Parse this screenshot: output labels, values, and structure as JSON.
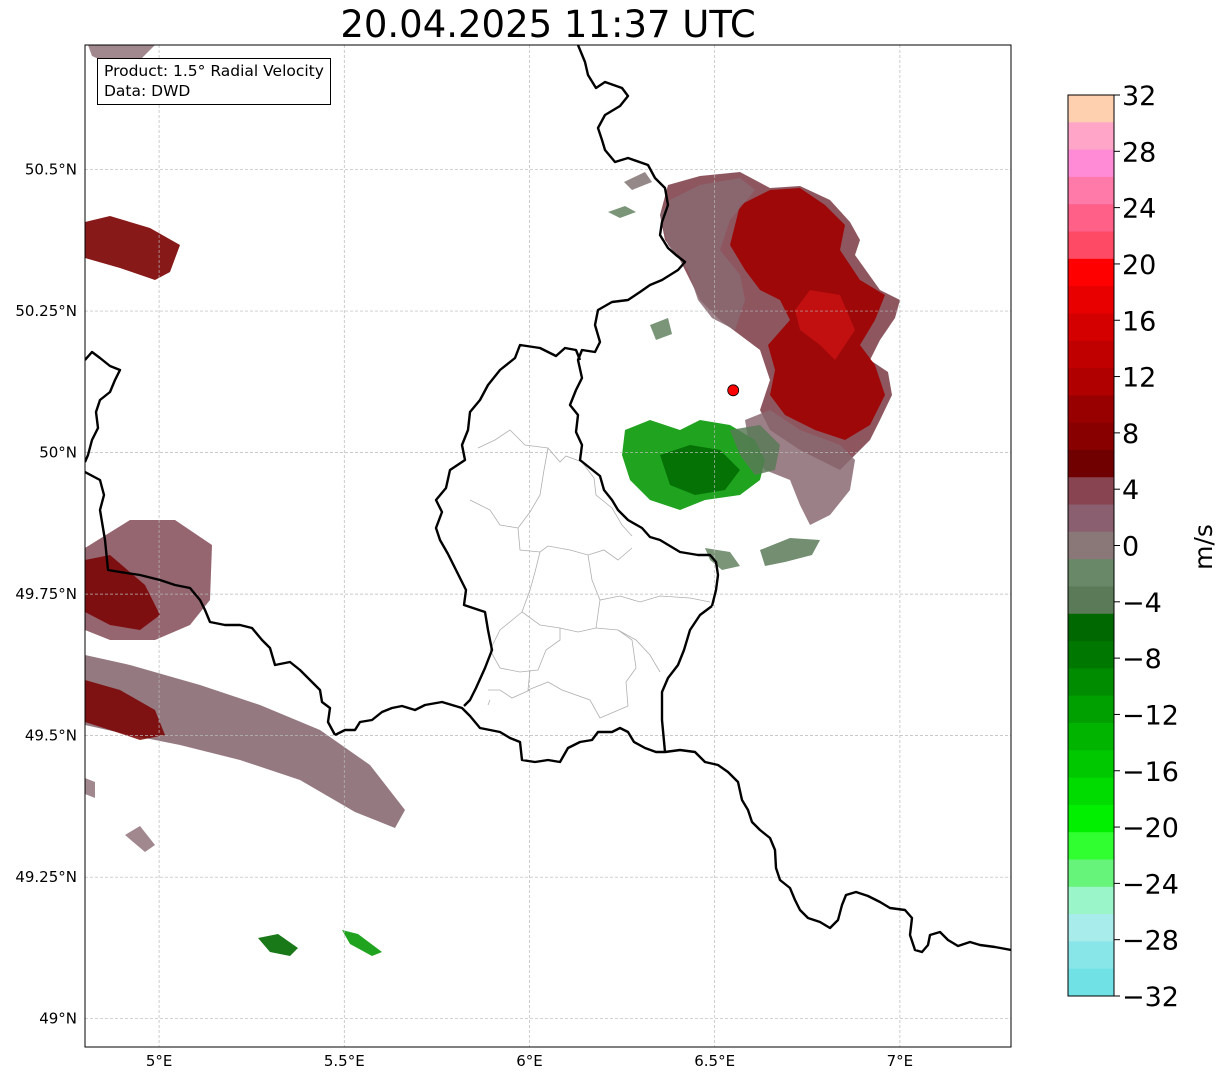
{
  "title": "20.04.2025 11:37 UTC",
  "info": {
    "product": "Product: 1.5° Radial Velocity",
    "data": "Data: DWD"
  },
  "map": {
    "lon_range": [
      4.8,
      7.3
    ],
    "lat_range": [
      48.95,
      50.72
    ],
    "lat_ticks": [
      {
        "value": 49.0,
        "label": "49°N"
      },
      {
        "value": 49.25,
        "label": "49.25°N"
      },
      {
        "value": 49.5,
        "label": "49.5°N"
      },
      {
        "value": 49.75,
        "label": "49.75°N"
      },
      {
        "value": 50.0,
        "label": "50°N"
      },
      {
        "value": 50.25,
        "label": "50.25°N"
      },
      {
        "value": 50.5,
        "label": "50.5°N"
      }
    ],
    "lon_ticks": [
      {
        "value": 5.0,
        "label": "5°E"
      },
      {
        "value": 5.5,
        "label": "5.5°E"
      },
      {
        "value": 6.0,
        "label": "6°E"
      },
      {
        "value": 6.5,
        "label": "6.5°E"
      },
      {
        "value": 7.0,
        "label": "7°E"
      }
    ],
    "radar_site": {
      "lon": 6.55,
      "lat": 50.11
    }
  },
  "colorbar": {
    "label": "m/s",
    "min": -32,
    "max": 32,
    "ticks": [
      "32",
      "28",
      "24",
      "20",
      "16",
      "12",
      "8",
      "4",
      "0",
      "−4",
      "−8",
      "−12",
      "−16",
      "−20",
      "−24",
      "−28",
      "−32"
    ],
    "colors_top_to_bottom": [
      "#ffd0b0",
      "#ffa6c8",
      "#ff8ad6",
      "#ff7aa8",
      "#ff6088",
      "#ff4a66",
      "#ff0000",
      "#e80000",
      "#d40000",
      "#c00000",
      "#b00000",
      "#980000",
      "#880000",
      "#700000",
      "#884450",
      "#8a6070",
      "#8a7878",
      "#688868",
      "#5a7a58",
      "#006800",
      "#007800",
      "#008c00",
      "#00a000",
      "#00b400",
      "#00c800",
      "#00dc00",
      "#00f000",
      "#30ff30",
      "#66f57a",
      "#9af5c8",
      "#a8ecec",
      "#88e6e8",
      "#70e2e6"
    ]
  },
  "colors": {
    "border": "#000000",
    "admin": "#b0b0b0",
    "grid": "#b8b8b8",
    "radar_site": "#ff0000"
  }
}
